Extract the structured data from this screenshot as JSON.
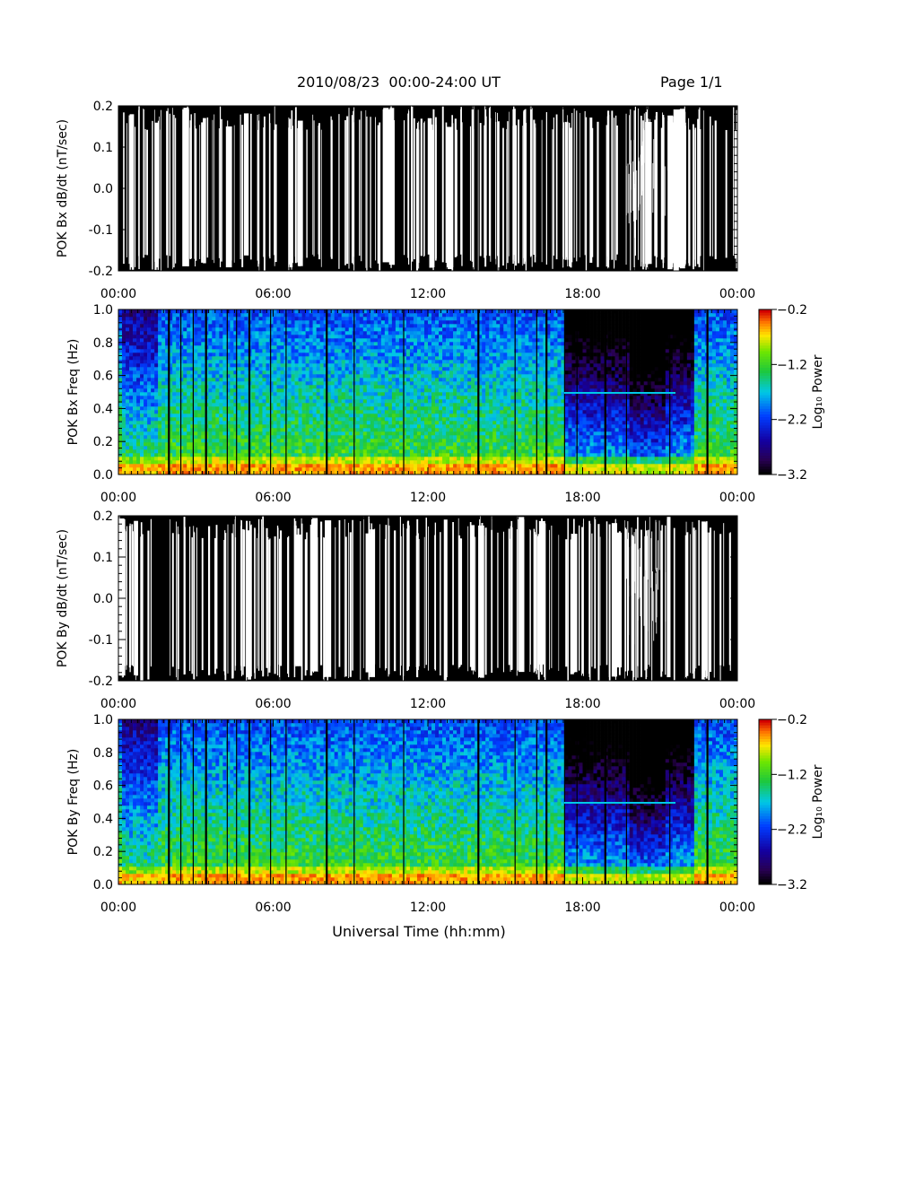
{
  "header": {
    "title": "2010/08/23  00:00-24:00 UT",
    "page": "Page 1/1"
  },
  "colors": {
    "background": "#ffffff",
    "trace": "#000000"
  },
  "chart_data": [
    {
      "type": "line",
      "ylabel": "POK Bx dB/dt (nT/sec)",
      "xlim": [
        "00:00",
        "24:00"
      ],
      "ylim": [
        -0.2,
        0.2
      ],
      "x_ticks": [
        "00:00",
        "06:00",
        "12:00",
        "18:00",
        "00:00"
      ],
      "y_ticks": [
        "-0.2",
        "-0.1",
        "0.0",
        "0.1",
        "0.2"
      ],
      "note_values": "Trace oscillates densely and saturates the full -0.2 to 0.2 range across the day"
    },
    {
      "type": "heatmap",
      "ylabel": "POK Bx Freq (Hz)",
      "xlim": [
        "00:00",
        "24:00"
      ],
      "ylim": [
        0.0,
        1.0
      ],
      "x_ticks": [
        "00:00",
        "06:00",
        "12:00",
        "18:00",
        "00:00"
      ],
      "y_ticks": [
        "0.0",
        "0.2",
        "0.4",
        "0.6",
        "0.8",
        "1.0"
      ],
      "colorbar": {
        "label": "Log₁₀ Power",
        "range": [
          -3.2,
          -0.2
        ],
        "ticks": [
          "-0.2",
          "-1.2",
          "-2.2",
          "-3.2"
        ]
      }
    },
    {
      "type": "line",
      "ylabel": "POK By dB/dt (nT/sec)",
      "xlim": [
        "00:00",
        "24:00"
      ],
      "ylim": [
        -0.2,
        0.2
      ],
      "x_ticks": [
        "00:00",
        "06:00",
        "12:00",
        "18:00",
        "00:00"
      ],
      "y_ticks": [
        "-0.2",
        "-0.1",
        "0.0",
        "0.1",
        "0.2"
      ]
    },
    {
      "type": "heatmap",
      "ylabel": "POK By Freq (Hz)",
      "xlabel": "Universal Time (hh:mm)",
      "xlim": [
        "00:00",
        "24:00"
      ],
      "ylim": [
        0.0,
        1.0
      ],
      "x_ticks": [
        "00:00",
        "06:00",
        "12:00",
        "18:00",
        "00:00"
      ],
      "y_ticks": [
        "0.0",
        "0.2",
        "0.4",
        "0.6",
        "0.8",
        "1.0"
      ],
      "colorbar": {
        "label": "Log₁₀ Power",
        "range": [
          -3.2,
          -0.2
        ],
        "ticks": [
          "-0.2",
          "-1.2",
          "-2.2",
          "-3.2"
        ]
      }
    }
  ]
}
